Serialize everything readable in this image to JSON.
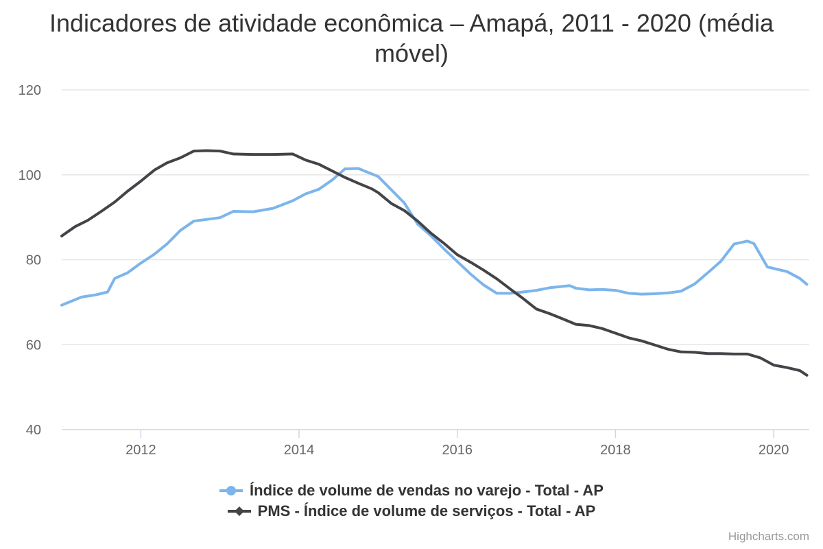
{
  "chart_data": {
    "type": "line",
    "title": "Indicadores de atividade econômica – Amapá, 2011 - 2020 (média móvel)",
    "xlabel": "",
    "ylabel": "",
    "xlim": [
      2011.0,
      2020.45
    ],
    "ylim": [
      40,
      120
    ],
    "y_ticks": [
      40,
      60,
      80,
      100,
      120
    ],
    "x_ticks": [
      2012,
      2014,
      2016,
      2018,
      2020
    ],
    "grid": true,
    "legend": "bottom-center",
    "credits": "Highcharts.com",
    "series": [
      {
        "name": "Índice de volume de vendas no varejo - Total - AP",
        "color": "#7cb5ec",
        "marker": "circle",
        "points": [
          [
            2011.0,
            69.3
          ],
          [
            2011.25,
            71.2
          ],
          [
            2011.42,
            71.7
          ],
          [
            2011.58,
            72.4
          ],
          [
            2011.67,
            75.6
          ],
          [
            2011.83,
            76.9
          ],
          [
            2012.0,
            79.2
          ],
          [
            2012.17,
            81.3
          ],
          [
            2012.33,
            83.7
          ],
          [
            2012.5,
            86.9
          ],
          [
            2012.67,
            89.1
          ],
          [
            2013.0,
            89.9
          ],
          [
            2013.17,
            91.4
          ],
          [
            2013.42,
            91.3
          ],
          [
            2013.67,
            92.1
          ],
          [
            2013.92,
            93.9
          ],
          [
            2014.08,
            95.5
          ],
          [
            2014.25,
            96.6
          ],
          [
            2014.42,
            98.8
          ],
          [
            2014.58,
            101.4
          ],
          [
            2014.75,
            101.5
          ],
          [
            2015.0,
            99.6
          ],
          [
            2015.17,
            96.4
          ],
          [
            2015.33,
            93.4
          ],
          [
            2015.5,
            88.4
          ],
          [
            2015.67,
            85.6
          ],
          [
            2015.83,
            82.6
          ],
          [
            2016.0,
            79.6
          ],
          [
            2016.17,
            76.6
          ],
          [
            2016.33,
            74.1
          ],
          [
            2016.5,
            72.1
          ],
          [
            2016.67,
            72.1
          ],
          [
            2016.83,
            72.4
          ],
          [
            2017.0,
            72.8
          ],
          [
            2017.17,
            73.4
          ],
          [
            2017.42,
            73.9
          ],
          [
            2017.5,
            73.3
          ],
          [
            2017.67,
            72.9
          ],
          [
            2017.83,
            73.0
          ],
          [
            2018.0,
            72.8
          ],
          [
            2018.17,
            72.1
          ],
          [
            2018.33,
            71.9
          ],
          [
            2018.5,
            72.0
          ],
          [
            2018.67,
            72.2
          ],
          [
            2018.83,
            72.6
          ],
          [
            2019.0,
            74.3
          ],
          [
            2019.17,
            77.0
          ],
          [
            2019.33,
            79.6
          ],
          [
            2019.5,
            83.7
          ],
          [
            2019.67,
            84.4
          ],
          [
            2019.75,
            83.8
          ],
          [
            2019.92,
            78.3
          ],
          [
            2020.17,
            77.2
          ],
          [
            2020.33,
            75.6
          ],
          [
            2020.42,
            74.2
          ]
        ]
      },
      {
        "name": "PMS - Índice de volume de serviços - Total - AP",
        "color": "#434348",
        "marker": "diamond",
        "points": [
          [
            2011.0,
            85.6
          ],
          [
            2011.17,
            87.8
          ],
          [
            2011.33,
            89.3
          ],
          [
            2011.5,
            91.4
          ],
          [
            2011.67,
            93.6
          ],
          [
            2011.83,
            96.1
          ],
          [
            2012.0,
            98.5
          ],
          [
            2012.17,
            101.1
          ],
          [
            2012.33,
            102.8
          ],
          [
            2012.5,
            104.0
          ],
          [
            2012.67,
            105.6
          ],
          [
            2012.83,
            105.7
          ],
          [
            2013.0,
            105.6
          ],
          [
            2013.17,
            104.9
          ],
          [
            2013.42,
            104.8
          ],
          [
            2013.67,
            104.8
          ],
          [
            2013.92,
            104.9
          ],
          [
            2014.08,
            103.5
          ],
          [
            2014.25,
            102.5
          ],
          [
            2014.42,
            100.9
          ],
          [
            2014.58,
            99.4
          ],
          [
            2014.75,
            98.0
          ],
          [
            2014.92,
            96.7
          ],
          [
            2015.0,
            95.8
          ],
          [
            2015.17,
            93.2
          ],
          [
            2015.33,
            91.6
          ],
          [
            2015.5,
            89.1
          ],
          [
            2015.67,
            86.2
          ],
          [
            2015.83,
            83.9
          ],
          [
            2016.0,
            81.2
          ],
          [
            2016.17,
            79.4
          ],
          [
            2016.33,
            77.6
          ],
          [
            2016.5,
            75.5
          ],
          [
            2016.67,
            73.1
          ],
          [
            2016.83,
            70.9
          ],
          [
            2017.0,
            68.4
          ],
          [
            2017.17,
            67.3
          ],
          [
            2017.33,
            66.1
          ],
          [
            2017.5,
            64.8
          ],
          [
            2017.67,
            64.5
          ],
          [
            2017.83,
            63.8
          ],
          [
            2018.0,
            62.7
          ],
          [
            2018.17,
            61.6
          ],
          [
            2018.33,
            60.9
          ],
          [
            2018.5,
            59.9
          ],
          [
            2018.67,
            58.9
          ],
          [
            2018.83,
            58.3
          ],
          [
            2019.0,
            58.2
          ],
          [
            2019.17,
            57.9
          ],
          [
            2019.33,
            57.9
          ],
          [
            2019.5,
            57.8
          ],
          [
            2019.67,
            57.8
          ],
          [
            2019.83,
            56.9
          ],
          [
            2020.0,
            55.2
          ],
          [
            2020.17,
            54.6
          ],
          [
            2020.33,
            53.9
          ],
          [
            2020.42,
            52.8
          ]
        ]
      }
    ]
  }
}
